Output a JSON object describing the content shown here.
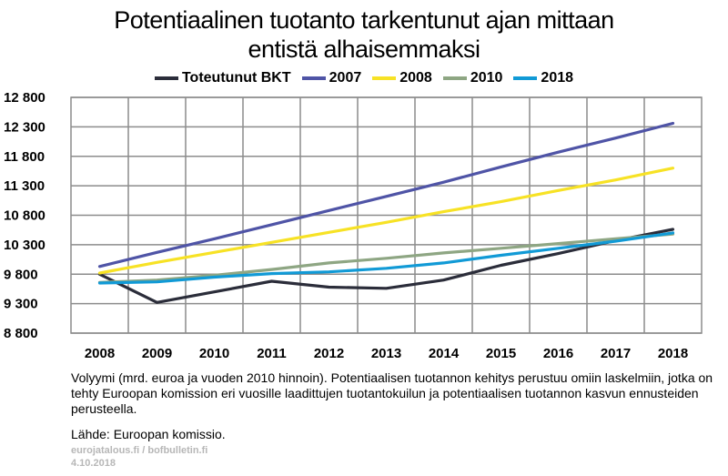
{
  "title_line1": "Potentiaalinen tuotanto tarkentunut ajan mittaan",
  "title_line2": "entistä alhaisemmaksi",
  "footnote": "Volyymi (mrd. euroa ja vuoden 2010 hinnoin). Potentiaalisen tuotannon kehitys perustuu omiin laskelmiin, jotka on tehty Euroopan komission eri vuosille laadittujen tuotantokuilun ja potentiaalisen tuotannon kasvun ennusteiden perusteella.",
  "source": "Lähde: Euroopan komissio.",
  "brand_line1": "eurojatalous.fi / bofbulletin.fi",
  "brand_line2": "4.10.2018",
  "chart_data": {
    "type": "line",
    "title": "Potentiaalinen tuotanto tarkentunut ajan mittaan entistä alhaisemmaksi",
    "x": [
      2008,
      2009,
      2010,
      2011,
      2012,
      2013,
      2014,
      2015,
      2016,
      2017,
      2018
    ],
    "y_ticks": [
      "8 800",
      "9 300",
      "9 800",
      "10 300",
      "10 800",
      "11 300",
      "11 800",
      "12 300",
      "12 800"
    ],
    "y_tick_values": [
      8800,
      9300,
      9800,
      10300,
      10800,
      11300,
      11800,
      12300,
      12800
    ],
    "ylim": [
      8800,
      12800
    ],
    "grid": true,
    "legend_position": "top",
    "series": [
      {
        "name": "Toteutunut BKT",
        "color": "#2b2d3a",
        "values": [
          9800,
          9320,
          9500,
          9680,
          9580,
          9560,
          9700,
          9950,
          10150,
          10370,
          10560
        ]
      },
      {
        "name": "2007",
        "color": "#4f54a6",
        "values": [
          9930,
          10170,
          10400,
          10640,
          10880,
          11120,
          11360,
          11620,
          11870,
          12110,
          12360
        ]
      },
      {
        "name": "2008",
        "color": "#f7e225",
        "values": [
          9820,
          10000,
          10170,
          10340,
          10510,
          10680,
          10860,
          11030,
          11220,
          11400,
          11600
        ]
      },
      {
        "name": "2010",
        "color": "#8ea683",
        "values": [
          9660,
          9700,
          9780,
          9880,
          9990,
          10070,
          10160,
          10240,
          10320,
          10400,
          10480
        ]
      },
      {
        "name": "2018",
        "color": "#119ad6",
        "values": [
          9650,
          9670,
          9750,
          9810,
          9840,
          9900,
          9990,
          10120,
          10240,
          10360,
          10500
        ]
      }
    ]
  }
}
